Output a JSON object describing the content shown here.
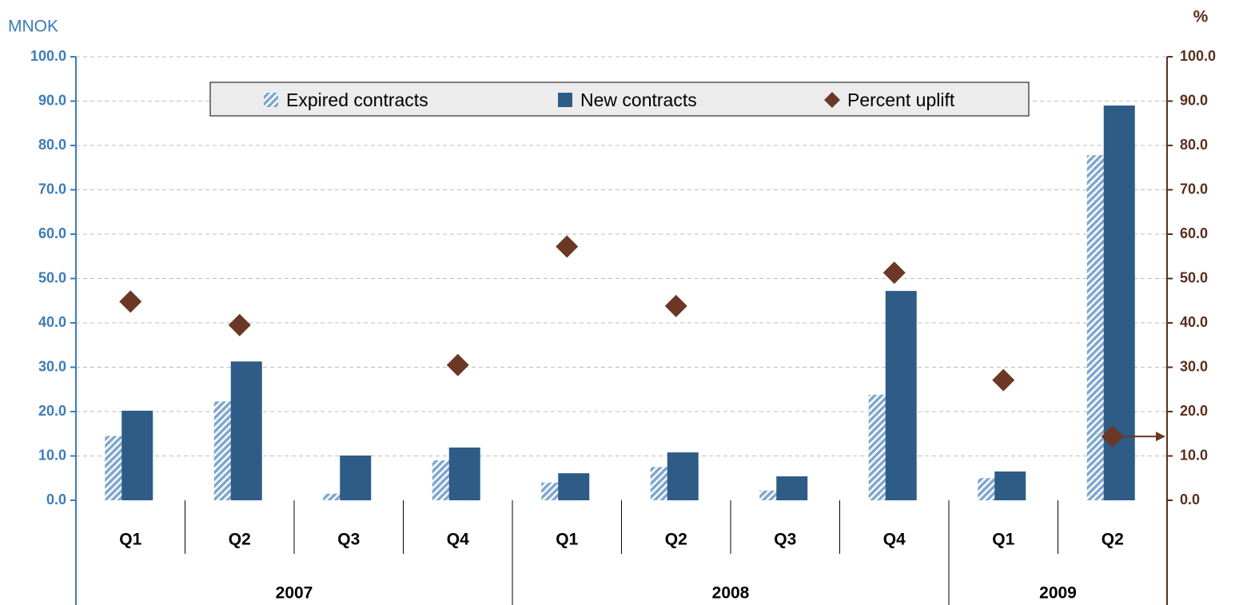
{
  "chart_data": {
    "type": "bar",
    "y_label": "MNOK",
    "y2_label": "%",
    "categories": [
      "Q1",
      "Q2",
      "Q3",
      "Q4",
      "Q1",
      "Q2",
      "Q3",
      "Q4",
      "Q1",
      "Q2"
    ],
    "groups": [
      {
        "label": "2007",
        "span": 4
      },
      {
        "label": "2008",
        "span": 4
      },
      {
        "label": "2009",
        "span": 2
      }
    ],
    "series": [
      {
        "name": "Expired contracts",
        "color": "#7fa7cf",
        "pattern": "hatch",
        "values": [
          14.5,
          22.3,
          1.5,
          9.0,
          4.0,
          7.5,
          2.2,
          23.8,
          5.0,
          77.8
        ]
      },
      {
        "name": "New contracts",
        "color": "#2e5c87",
        "values": [
          20.2,
          31.3,
          10.1,
          11.9,
          6.1,
          10.8,
          5.4,
          47.2,
          6.5,
          89.0
        ]
      },
      {
        "name": "Percent uplift",
        "type": "scatter",
        "marker": "diamond",
        "color": "#6b3826",
        "axis": "y2",
        "values": [
          44.8,
          39.5,
          null,
          30.5,
          57.2,
          43.8,
          null,
          51.3,
          27.1,
          14.4
        ]
      }
    ],
    "ylim": [
      0,
      100
    ],
    "yticks": [
      {
        "value": 0,
        "label": "0.0"
      },
      {
        "value": 10,
        "label": "10.0"
      },
      {
        "value": 20,
        "label": "20.0"
      },
      {
        "value": 30,
        "label": "30.0"
      },
      {
        "value": 40,
        "label": "40.0"
      },
      {
        "value": 50,
        "label": "50.0"
      },
      {
        "value": 60,
        "label": "60.0"
      },
      {
        "value": 70,
        "label": "70.0"
      },
      {
        "value": 80,
        "label": "80.0"
      },
      {
        "value": 90,
        "label": "90.0"
      },
      {
        "value": 100,
        "label": "100.0"
      }
    ],
    "y2lim": [
      0,
      100
    ],
    "y2ticks": [
      {
        "value": 0,
        "label": "0.0"
      },
      {
        "value": 10,
        "label": "10.0"
      },
      {
        "value": 20,
        "label": "20.0"
      },
      {
        "value": 30,
        "label": "30.0"
      },
      {
        "value": 40,
        "label": "40.0"
      },
      {
        "value": 50,
        "label": "50.0"
      },
      {
        "value": 60,
        "label": "60.0"
      },
      {
        "value": 70,
        "label": "70.0"
      },
      {
        "value": 80,
        "label": "80.0"
      },
      {
        "value": 90,
        "label": "90.0"
      },
      {
        "value": 100,
        "label": "100.0"
      }
    ],
    "grid": true,
    "legend": "top"
  }
}
